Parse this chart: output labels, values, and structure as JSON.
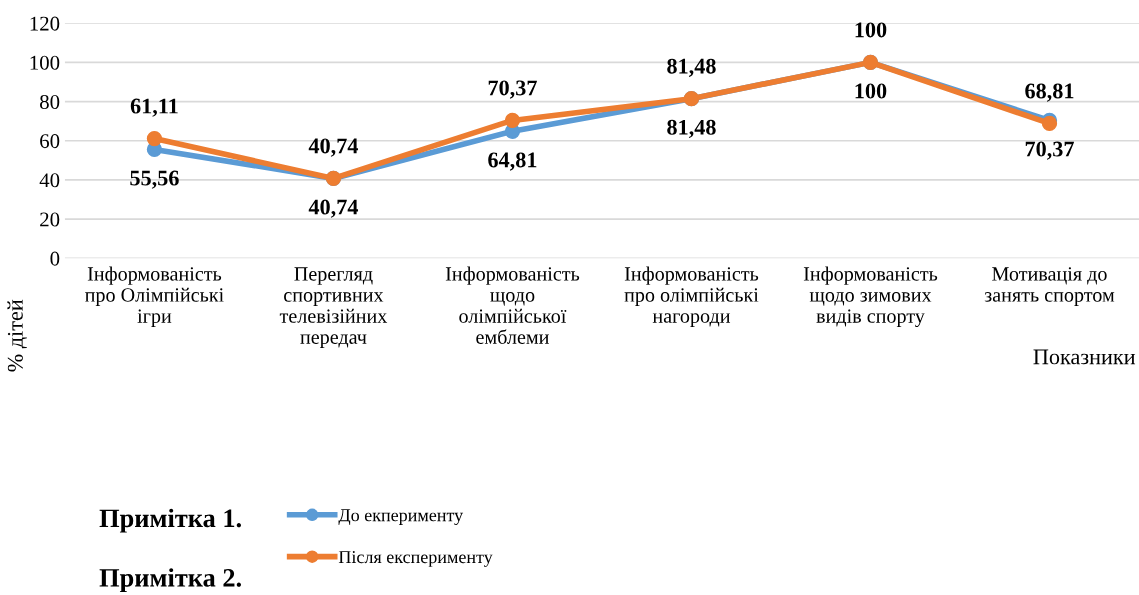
{
  "chart_data": {
    "type": "line",
    "xlabel": "Показники",
    "ylabel": "% дітей",
    "categories": [
      "Інформованість\nпро Олімпійські\nігри",
      "Перегляд\nспортивних\nтелевізійних\nпередач",
      "Інформованість\nщодо\nолімпійської\nемблеми",
      "Інформованість\nпро олімпійські\nнагороди",
      "Інформованість\nщодо зимових\nвидів спорту",
      "Мотивація до\nзанять спортом"
    ],
    "series": [
      {
        "name": "До екперименту",
        "color": "#5b9bd5",
        "values": [
          55.56,
          40.74,
          64.81,
          81.48,
          100,
          70.37
        ],
        "value_labels": [
          "55,56",
          "40,74",
          "64,81",
          "81,48",
          "100",
          "70,37"
        ]
      },
      {
        "name": "Після експерименту",
        "color": "#ed7d31",
        "values": [
          61.11,
          40.74,
          70.37,
          81.48,
          100,
          68.81
        ],
        "value_labels": [
          "61,11",
          "40,74",
          "70,37",
          "81,48",
          "100",
          "68,81"
        ]
      }
    ],
    "ylim": [
      0,
      120
    ],
    "yticks": [
      0,
      20,
      40,
      60,
      80,
      100,
      120
    ],
    "grid": "y",
    "legend": "bottom",
    "marker": "circle",
    "line_style": "solid",
    "annotations": [
      "Примітка 1.",
      "Примітка 2."
    ]
  }
}
